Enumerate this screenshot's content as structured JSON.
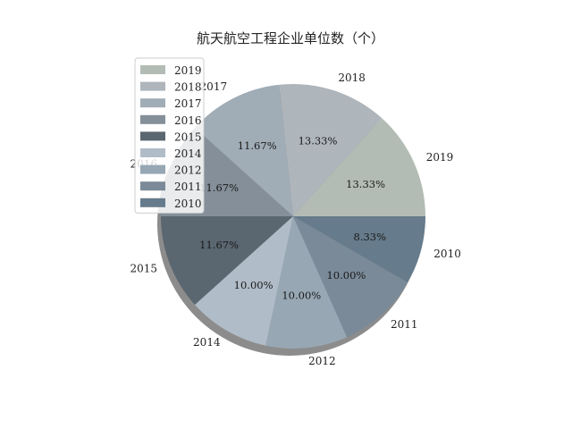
{
  "chart_data": {
    "type": "pie",
    "title": "航天航空工程企业单位数（个）",
    "labels": [
      "2019",
      "2018",
      "2017",
      "2016",
      "2015",
      "2014",
      "2012",
      "2011",
      "2010"
    ],
    "values": [
      13.33,
      13.33,
      11.67,
      11.67,
      11.67,
      10.0,
      10.0,
      10.0,
      8.33
    ],
    "percent_labels": [
      "13.33%",
      "13.33%",
      "11.67%",
      "11.67%",
      "11.67%",
      "10.00%",
      "10.00%",
      "10.00%",
      "8.33%"
    ],
    "colors": [
      "#b3bcb4",
      "#aeb5bb",
      "#a0acb6",
      "#848f99",
      "#5a6670",
      "#b0bcc7",
      "#97a7b4",
      "#7a8a98",
      "#667b8b"
    ],
    "shadow": true,
    "legend": {
      "placement": "upper-left",
      "entries": [
        "2019",
        "2018",
        "2017",
        "2016",
        "2015",
        "2014",
        "2012",
        "2011",
        "2010"
      ]
    }
  }
}
